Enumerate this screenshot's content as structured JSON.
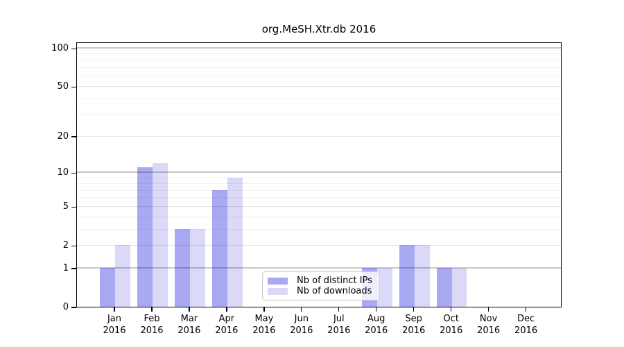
{
  "chart_data": {
    "type": "bar",
    "title": "org.MeSH.Xtr.db 2016",
    "x_categories": [
      {
        "month": "Jan",
        "year": "2016"
      },
      {
        "month": "Feb",
        "year": "2016"
      },
      {
        "month": "Mar",
        "year": "2016"
      },
      {
        "month": "Apr",
        "year": "2016"
      },
      {
        "month": "May",
        "year": "2016"
      },
      {
        "month": "Jun",
        "year": "2016"
      },
      {
        "month": "Jul",
        "year": "2016"
      },
      {
        "month": "Aug",
        "year": "2016"
      },
      {
        "month": "Sep",
        "year": "2016"
      },
      {
        "month": "Oct",
        "year": "2016"
      },
      {
        "month": "Nov",
        "year": "2016"
      },
      {
        "month": "Dec",
        "year": "2016"
      }
    ],
    "series": [
      {
        "name": "Nb of distinct IPs",
        "color": "#a9a9f3",
        "values": [
          1,
          11,
          3,
          7,
          0,
          0,
          0,
          1,
          2,
          1,
          0,
          0
        ]
      },
      {
        "name": "Nb of downloads",
        "color": "#dadaf8",
        "values": [
          2,
          12,
          3,
          9,
          0,
          0,
          0,
          1,
          2,
          1,
          0,
          0
        ]
      }
    ],
    "y_axis": {
      "scale": "log10(1+x)",
      "tick_values": [
        0,
        1,
        2,
        5,
        10,
        20,
        50,
        100
      ],
      "decade_values": [
        1,
        10,
        100
      ],
      "minor_gridline_values": [
        3,
        4,
        6,
        7,
        8,
        9,
        30,
        40,
        60,
        70,
        80,
        90
      ],
      "range_max": 112
    },
    "legend_position": "lower center",
    "grid": "on",
    "colors": {
      "distinct_ips_bar": "#a9a9f3",
      "downloads_bar": "#dadaf8",
      "axis": "#000000",
      "background": "#ffffff"
    }
  }
}
